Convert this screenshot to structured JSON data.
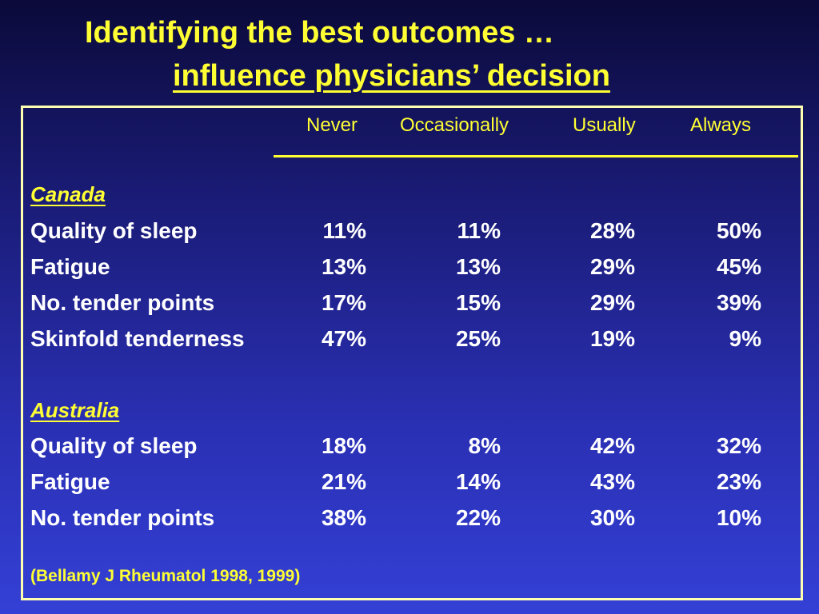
{
  "title": {
    "line1": "Identifying the best outcomes …",
    "line2": "influence physicians’ decision"
  },
  "table": {
    "columns": [
      "Never",
      "Occasionally",
      "Usually",
      "Always"
    ],
    "sections": [
      {
        "name": "Canada",
        "rows": [
          {
            "label": "Quality of sleep",
            "values": [
              "11%",
              "11%",
              "28%",
              "50%"
            ]
          },
          {
            "label": "Fatigue",
            "values": [
              "13%",
              "13%",
              "29%",
              "45%"
            ]
          },
          {
            "label": "No. tender points",
            "values": [
              "17%",
              "15%",
              "29%",
              "39%"
            ]
          },
          {
            "label": "Skinfold tenderness",
            "values": [
              "47%",
              "25%",
              "19%",
              "9%"
            ]
          }
        ]
      },
      {
        "name": "Australia",
        "rows": [
          {
            "label": "Quality of sleep",
            "values": [
              "18%",
              "8%",
              "42%",
              "32%"
            ]
          },
          {
            "label": "Fatigue",
            "values": [
              "21%",
              "14%",
              "43%",
              "23%"
            ]
          },
          {
            "label": "No. tender points",
            "values": [
              "38%",
              "22%",
              "30%",
              "10%"
            ]
          }
        ]
      }
    ]
  },
  "footnote": "(Bellamy J Rheumatol 1998, 1999)",
  "colors": {
    "title": "#ffff33",
    "body_text": "#ffffff",
    "background_top": "#0b0a3a",
    "background_bottom": "#3440d6",
    "frame": "#ffffb0"
  }
}
